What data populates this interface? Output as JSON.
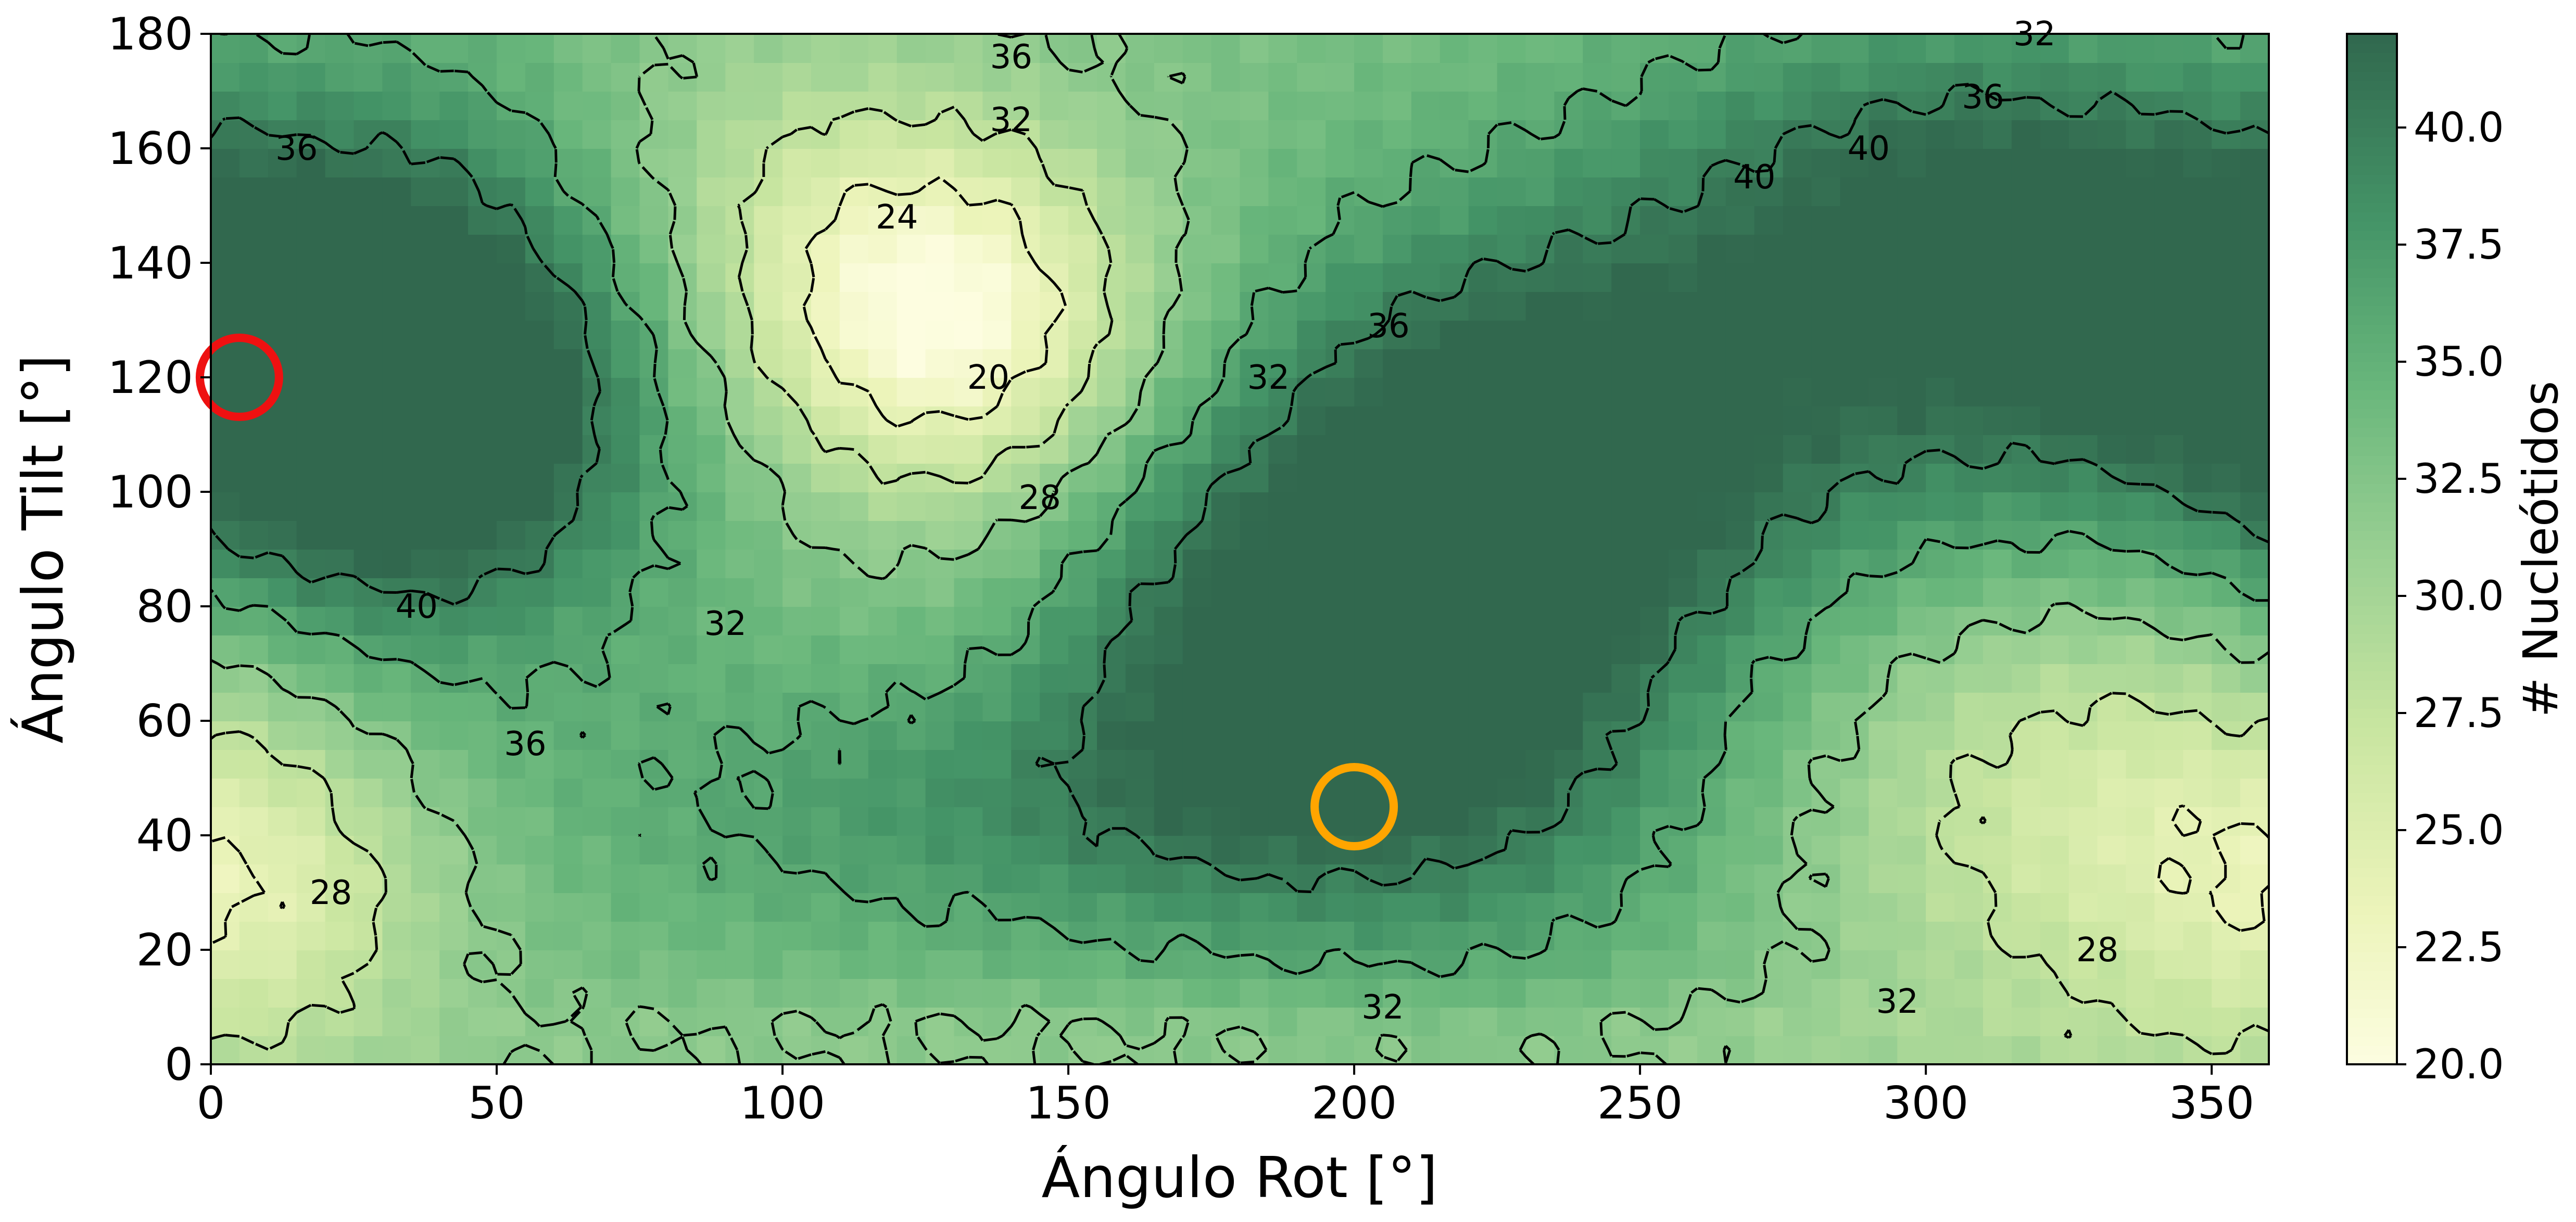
{
  "chart_data": {
    "type": "heatmap",
    "title": "",
    "xlabel": "Ángulo Rot [°]",
    "ylabel": "Ángulo Tilt [°]",
    "xlim": [
      0,
      360
    ],
    "ylim": [
      0,
      180
    ],
    "xticks": [
      "0",
      "50",
      "100",
      "150",
      "200",
      "250",
      "300",
      "350"
    ],
    "yticks": [
      "0",
      "20",
      "40",
      "60",
      "80",
      "100",
      "120",
      "140",
      "160",
      "180"
    ],
    "x_tick_values": [
      0,
      50,
      100,
      150,
      200,
      250,
      300,
      350
    ],
    "y_tick_values": [
      0,
      20,
      40,
      60,
      80,
      100,
      120,
      140,
      160,
      180
    ],
    "colorbar": {
      "label": "# Nucleótidos",
      "colormap": "YlGn-like (light yellow to dark green)",
      "color_low": "#fdfde0",
      "color_high": "#31684e",
      "range": [
        20.0,
        42.0
      ],
      "ticks": [
        "20.0",
        "22.5",
        "25.0",
        "27.5",
        "30.0",
        "32.5",
        "35.0",
        "37.5",
        "40.0"
      ],
      "tick_values": [
        20.0,
        22.5,
        25.0,
        27.5,
        30.0,
        32.5,
        35.0,
        37.5,
        40.0
      ]
    },
    "contours": {
      "style": "dashed black",
      "levels": [
        20,
        24,
        28,
        32,
        36,
        40
      ],
      "labels": [
        {
          "text": "36",
          "x": 140,
          "y": 176
        },
        {
          "text": "32",
          "x": 319,
          "y": 180
        },
        {
          "text": "36",
          "x": 310,
          "y": 169
        },
        {
          "text": "32",
          "x": 140,
          "y": 165
        },
        {
          "text": "36",
          "x": 15,
          "y": 160
        },
        {
          "text": "40",
          "x": 270,
          "y": 155
        },
        {
          "text": "40",
          "x": 290,
          "y": 160
        },
        {
          "text": "24",
          "x": 120,
          "y": 148
        },
        {
          "text": "36",
          "x": 206,
          "y": 129
        },
        {
          "text": "32",
          "x": 185,
          "y": 120
        },
        {
          "text": "20",
          "x": 136,
          "y": 120
        },
        {
          "text": "28",
          "x": 145,
          "y": 99
        },
        {
          "text": "40",
          "x": 36,
          "y": 80
        },
        {
          "text": "32",
          "x": 90,
          "y": 77
        },
        {
          "text": "36",
          "x": 55,
          "y": 56
        },
        {
          "text": "28",
          "x": 21,
          "y": 30
        },
        {
          "text": "32",
          "x": 205,
          "y": 10
        },
        {
          "text": "32",
          "x": 295,
          "y": 11
        },
        {
          "text": "28",
          "x": 330,
          "y": 20
        }
      ]
    },
    "markers": [
      {
        "name": "red circle",
        "x": 5,
        "y": 120,
        "color": "#ee1111"
      },
      {
        "name": "orange circle",
        "x": 200,
        "y": 45,
        "color": "#ffa500"
      }
    ],
    "peaks": [
      {
        "x": 35,
        "y": 110,
        "value": 42,
        "sx": 28,
        "sy": 28
      },
      {
        "x": 60,
        "y": 140,
        "value": 38,
        "sx": 40,
        "sy": 30
      },
      {
        "x": 215,
        "y": 75,
        "value": 42,
        "sx": 32,
        "sy": 35
      },
      {
        "x": 240,
        "y": 110,
        "value": 41,
        "sx": 40,
        "sy": 28
      },
      {
        "x": 345,
        "y": 125,
        "value": 42,
        "sx": 45,
        "sy": 28
      },
      {
        "x": 300,
        "y": 155,
        "value": 39,
        "sx": 40,
        "sy": 22
      },
      {
        "x": 150,
        "y": 45,
        "value": 38,
        "sx": 60,
        "sy": 18
      },
      {
        "x": 170,
        "y": 75,
        "value": 37,
        "sx": 20,
        "sy": 25
      }
    ],
    "troughs": [
      {
        "x": 128,
        "y": 130,
        "value": 20,
        "sx": 25,
        "sy": 22
      },
      {
        "x": 90,
        "y": 150,
        "value": 27,
        "sx": 30,
        "sy": 25
      },
      {
        "x": 330,
        "y": 45,
        "value": 26,
        "sx": 35,
        "sy": 30
      },
      {
        "x": 10,
        "y": 30,
        "value": 27,
        "sx": 22,
        "sy": 20
      },
      {
        "x": 200,
        "y": 5,
        "value": 31,
        "sx": 120,
        "sy": 6
      }
    ],
    "baseline_value": 33
  }
}
